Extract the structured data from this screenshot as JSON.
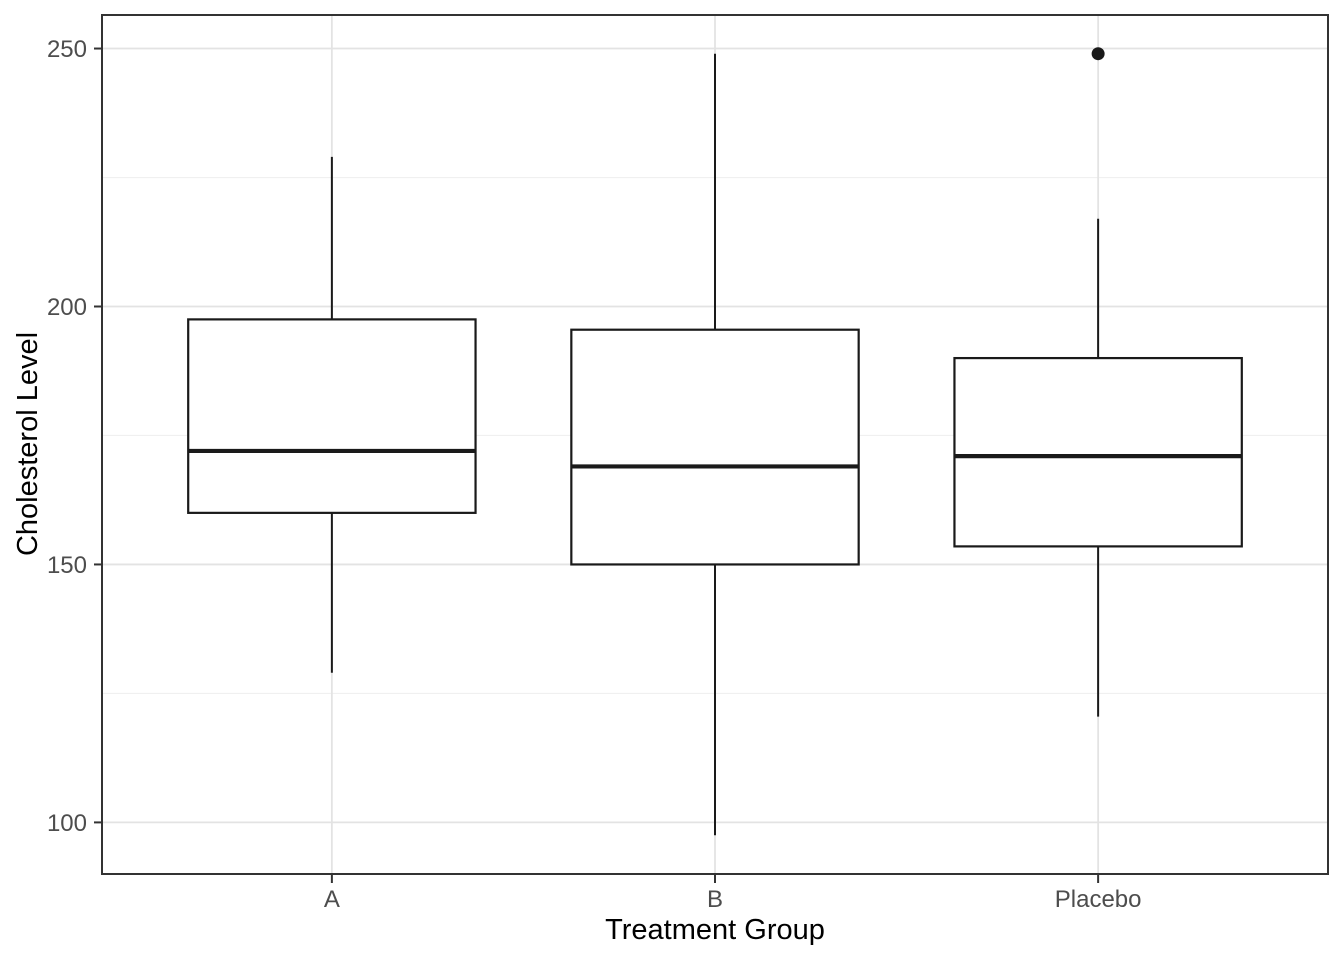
{
  "chart_data": {
    "type": "boxplot",
    "title": "",
    "xlabel": "Treatment Group",
    "ylabel": "Cholesterol Level",
    "categories": [
      "A",
      "B",
      "Placebo"
    ],
    "series": [
      {
        "name": "A",
        "whisker_low": 129,
        "q1": 160,
        "median": 172,
        "q3": 197.5,
        "whisker_high": 229,
        "outliers": []
      },
      {
        "name": "B",
        "whisker_low": 97.5,
        "q1": 150,
        "median": 169,
        "q3": 195.5,
        "whisker_high": 249,
        "outliers": []
      },
      {
        "name": "Placebo",
        "whisker_low": 120.5,
        "q1": 153.5,
        "median": 171,
        "q3": 190,
        "whisker_high": 217,
        "outliers": [
          249
        ]
      }
    ],
    "y_ticks": [
      100,
      150,
      200,
      250
    ],
    "y_minor_ticks": [
      125,
      175,
      225
    ],
    "ylim": [
      90,
      256.5
    ],
    "grid": "on",
    "legend": "none",
    "colors": {
      "box_stroke": "#1a1a1a",
      "box_fill": "#ffffff",
      "panel_border": "#333333",
      "grid_major": "#e3e3e3",
      "grid_minor": "#f0f0f0",
      "tick_mark": "#333333",
      "tick_label": "#4d4d4d",
      "axis_title": "#000000",
      "background": "#ffffff"
    }
  }
}
